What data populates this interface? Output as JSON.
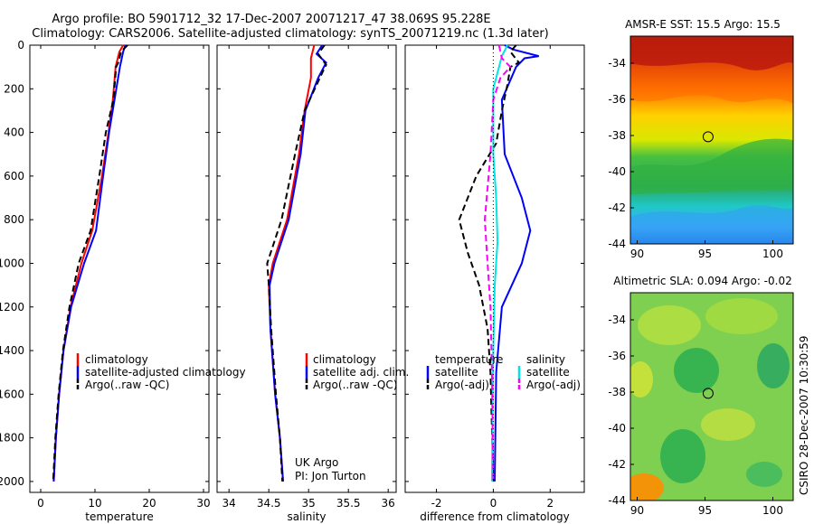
{
  "header": {
    "title_line1": "Argo profile: BO 5901712_32 17-Dec-2007 20071217_47 38.069S 95.228E",
    "title_line2": "Climatology: CARS2006. Satellite-adjusted climatology: synTS_20071219.nc (1.3d later)"
  },
  "side_caption": "CSIRO 28-Dec-2007 10:30:59",
  "colors": {
    "red": "#ff0000",
    "blue": "#0000ff",
    "black": "#000000",
    "cyan": "#00e5e5",
    "magenta": "#ff00ff"
  },
  "chart_data": [
    {
      "type": "line",
      "xlabel": "temperature",
      "ylabel": "",
      "xlim": [
        -2,
        31
      ],
      "ylim": [
        2050,
        0
      ],
      "x_ticks": [
        0,
        10,
        20,
        30
      ],
      "y_ticks": [
        0,
        200,
        400,
        600,
        800,
        1000,
        1200,
        1400,
        1600,
        1800,
        2000
      ],
      "legend": [
        "climatology",
        "satellite-adjusted climatology",
        "Argo(..raw -QC)"
      ],
      "series": [
        {
          "name": "climatology",
          "color": "red",
          "dash": "",
          "points": [
            [
              15.2,
              0
            ],
            [
              14.5,
              30
            ],
            [
              13.8,
              100
            ],
            [
              13.3,
              250
            ],
            [
              12.5,
              400
            ],
            [
              11.3,
              600
            ],
            [
              9.5,
              850
            ],
            [
              7.5,
              1000
            ],
            [
              5.5,
              1200
            ],
            [
              4.2,
              1400
            ],
            [
              3.4,
              1600
            ],
            [
              2.8,
              1800
            ],
            [
              2.4,
              2000
            ]
          ]
        },
        {
          "name": "satellite-adjusted climatology",
          "color": "blue",
          "dash": "",
          "points": [
            [
              15.6,
              0
            ],
            [
              15.2,
              30
            ],
            [
              14.6,
              100
            ],
            [
              13.6,
              250
            ],
            [
              12.6,
              400
            ],
            [
              11.5,
              600
            ],
            [
              10.2,
              850
            ],
            [
              8.0,
              1000
            ],
            [
              5.6,
              1200
            ],
            [
              4.2,
              1400
            ],
            [
              3.4,
              1600
            ],
            [
              2.8,
              1800
            ],
            [
              2.4,
              2000
            ]
          ]
        },
        {
          "name": "Argo(..raw -QC)",
          "color": "black",
          "dash": "7,4",
          "points": [
            [
              16,
              0
            ],
            [
              14.8,
              30
            ],
            [
              14.3,
              80
            ],
            [
              13.9,
              100
            ],
            [
              13.4,
              250
            ],
            [
              12.0,
              400
            ],
            [
              10.8,
              600
            ],
            [
              9.2,
              850
            ],
            [
              7.0,
              1000
            ],
            [
              5.3,
              1200
            ],
            [
              4.1,
              1400
            ],
            [
              3.3,
              1600
            ],
            [
              2.7,
              1800
            ],
            [
              2.3,
              2000
            ]
          ]
        }
      ]
    },
    {
      "type": "line",
      "xlabel": "salinity",
      "ylabel": "",
      "xlim": [
        33.85,
        36.1
      ],
      "ylim": [
        2050,
        0
      ],
      "x_ticks": [
        34,
        34.5,
        35,
        35.5,
        36
      ],
      "x_tick_labels": [
        "34",
        "34.5",
        "35",
        "35.5",
        "36"
      ],
      "legend": [
        "climatology",
        "satellite adj. clim.",
        "Argo(..raw -QC)"
      ],
      "annotation": [
        "UK Argo",
        "PI: Jon Turton"
      ],
      "series": [
        {
          "name": "climatology",
          "color": "red",
          "dash": "",
          "points": [
            [
              35.07,
              0
            ],
            [
              35.03,
              60
            ],
            [
              35.03,
              150
            ],
            [
              34.95,
              300
            ],
            [
              34.88,
              500
            ],
            [
              34.73,
              800
            ],
            [
              34.55,
              1000
            ],
            [
              34.5,
              1100
            ],
            [
              34.52,
              1300
            ],
            [
              34.58,
              1600
            ],
            [
              34.64,
              1800
            ],
            [
              34.68,
              2000
            ]
          ]
        },
        {
          "name": "satellite adj. clim.",
          "color": "blue",
          "dash": "",
          "points": [
            [
              35.17,
              0
            ],
            [
              35.1,
              40
            ],
            [
              35.22,
              80
            ],
            [
              35.12,
              150
            ],
            [
              34.96,
              300
            ],
            [
              34.9,
              500
            ],
            [
              34.75,
              800
            ],
            [
              34.57,
              1000
            ],
            [
              34.51,
              1100
            ],
            [
              34.52,
              1300
            ],
            [
              34.58,
              1600
            ],
            [
              34.64,
              1800
            ],
            [
              34.68,
              2000
            ]
          ]
        },
        {
          "name": "Argo(..raw -QC)",
          "color": "black",
          "dash": "7,4",
          "points": [
            [
              35.2,
              0
            ],
            [
              35.12,
              40
            ],
            [
              35.22,
              90
            ],
            [
              35.18,
              120
            ],
            [
              34.95,
              300
            ],
            [
              34.83,
              500
            ],
            [
              34.66,
              800
            ],
            [
              34.48,
              1000
            ],
            [
              34.5,
              1100
            ],
            [
              34.53,
              1300
            ],
            [
              34.59,
              1600
            ],
            [
              34.64,
              1800
            ],
            [
              34.67,
              2000
            ]
          ]
        }
      ]
    },
    {
      "type": "line",
      "xlabel": "difference from climatology",
      "ylabel": "",
      "xlim": [
        -3.1,
        3.2
      ],
      "ylim": [
        2050,
        0
      ],
      "x_ticks": [
        -2,
        0,
        2
      ],
      "legend_title_left": "temperature",
      "legend_title_right": "salinity",
      "legend_left": [
        "satellite",
        "Argo(-adj)"
      ],
      "legend_right": [
        "satellite",
        "Argo(-adj)"
      ],
      "series": [
        {
          "name": "temperature satellite",
          "color": "blue",
          "dash": "",
          "points": [
            [
              0.4,
              0
            ],
            [
              0.7,
              20
            ],
            [
              1.6,
              50
            ],
            [
              1.1,
              60
            ],
            [
              0.8,
              100
            ],
            [
              0.3,
              250
            ],
            [
              0.4,
              500
            ],
            [
              1.0,
              700
            ],
            [
              1.3,
              850
            ],
            [
              1.0,
              1000
            ],
            [
              0.3,
              1200
            ],
            [
              0.1,
              1500
            ],
            [
              0.05,
              2000
            ]
          ]
        },
        {
          "name": "temperature Argo(-adj)",
          "color": "black",
          "dash": "7,4",
          "points": [
            [
              0.8,
              0
            ],
            [
              0.6,
              30
            ],
            [
              0.9,
              80
            ],
            [
              0.6,
              100
            ],
            [
              0.5,
              180
            ],
            [
              0.3,
              300
            ],
            [
              0.1,
              450
            ],
            [
              -0.6,
              600
            ],
            [
              -1.2,
              800
            ],
            [
              -0.9,
              950
            ],
            [
              -0.5,
              1100
            ],
            [
              -0.2,
              1300
            ],
            [
              -0.1,
              1500
            ],
            [
              0.0,
              2000
            ]
          ]
        },
        {
          "name": "salinity satellite",
          "color": "cyan",
          "dash": "",
          "points": [
            [
              0.5,
              0
            ],
            [
              0.3,
              50
            ],
            [
              0.0,
              200
            ],
            [
              0.0,
              500
            ],
            [
              0.1,
              700
            ],
            [
              0.15,
              900
            ],
            [
              0.05,
              1100
            ],
            [
              0.0,
              1400
            ],
            [
              -0.05,
              2000
            ]
          ]
        },
        {
          "name": "salinity Argo(-adj)",
          "color": "magenta",
          "dash": "7,4",
          "points": [
            [
              0.2,
              0
            ],
            [
              0.3,
              60
            ],
            [
              0.6,
              100
            ],
            [
              0.25,
              150
            ],
            [
              0.0,
              250
            ],
            [
              -0.1,
              500
            ],
            [
              -0.3,
              800
            ],
            [
              -0.2,
              1000
            ],
            [
              -0.1,
              1200
            ],
            [
              -0.05,
              1500
            ],
            [
              0.0,
              2000
            ]
          ]
        },
        {
          "name": "zero line",
          "color": "black",
          "dash": "1,3",
          "points": [
            [
              0,
              0
            ],
            [
              0,
              2000
            ]
          ]
        }
      ]
    },
    {
      "type": "heatmap",
      "title": "AMSR-E SST: 15.5 Argo: 15.5",
      "xlim": [
        89.5,
        101.5
      ],
      "ylim": [
        -44,
        -32.5
      ],
      "x_ticks": [
        90,
        95,
        100
      ],
      "y_ticks": [
        -34,
        -36,
        -38,
        -40,
        -42,
        -44
      ],
      "marker": {
        "lon": 95.228,
        "lat": -38.069
      }
    },
    {
      "type": "heatmap",
      "title": "Altimetric SLA: 0.094 Argo: -0.02",
      "xlim": [
        89.5,
        101.5
      ],
      "ylim": [
        -44,
        -32.5
      ],
      "x_ticks": [
        90,
        95,
        100
      ],
      "y_ticks": [
        -34,
        -36,
        -38,
        -40,
        -42,
        -44
      ],
      "marker": {
        "lon": 95.228,
        "lat": -38.069
      }
    }
  ]
}
